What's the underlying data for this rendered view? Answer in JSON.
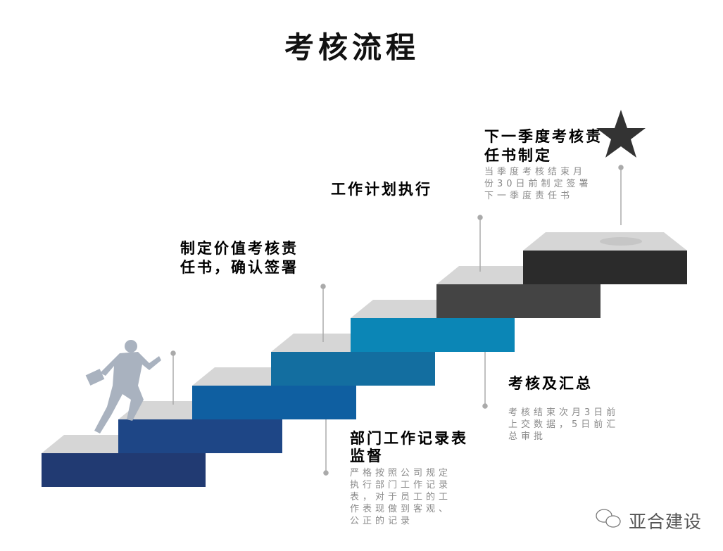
{
  "title": "考核流程",
  "steps_colors": [
    "#213a72",
    "#1e4686",
    "#0f5fa1",
    "#136ea0",
    "#0b86b6",
    "#444444",
    "#2b2b2b"
  ],
  "top_color": "#d6d6d6",
  "labels": {
    "s1": {
      "title": "制定价值考核责任书，确认签署"
    },
    "s2": {
      "title": "部门工作记录表监督",
      "desc": "严格按照公司规定执行部门工作记录表，对于员工的工作表现做到客观、公正的记录"
    },
    "s3": {
      "title": "工作计划执行"
    },
    "s4": {
      "title": "考核及汇总",
      "desc": "考核结束次月3日前上交数据，5日前汇总审批"
    },
    "s5": {
      "title": "下一季度考核责任书制定",
      "desc": "当季度考核结束月份30日前制定签署下一季度责任书"
    }
  },
  "watermark": "亚合建设",
  "icons": [
    "runner-figure",
    "star-icon",
    "wechat-icon"
  ]
}
